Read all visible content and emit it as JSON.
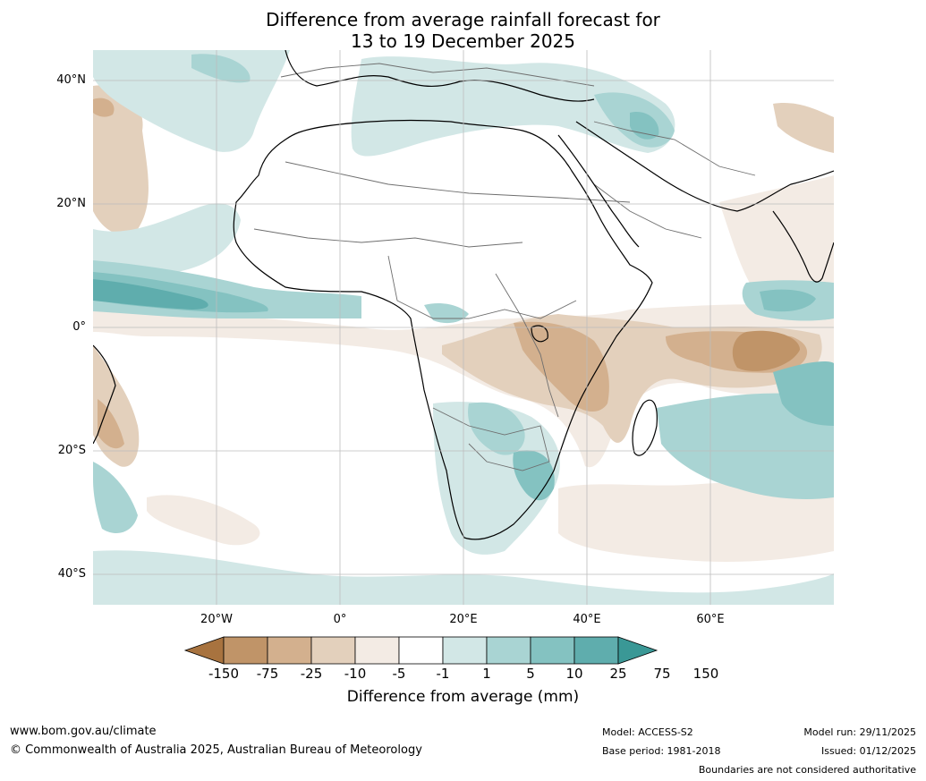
{
  "title": {
    "line1": "Difference from average rainfall forecast for",
    "line2": "13 to 19 December 2025"
  },
  "map": {
    "lat_labels": [
      "40°N",
      "20°N",
      "0°",
      "20°S",
      "40°S"
    ],
    "lon_labels": [
      "20°W",
      "0°",
      "20°E",
      "40°E",
      "60°E"
    ]
  },
  "colorbar": {
    "labels": [
      "-150",
      "-75",
      "-25",
      "-10",
      "-5",
      "-1",
      "1",
      "5",
      "10",
      "25",
      "75",
      "150"
    ],
    "colors": [
      "#a8733f",
      "#c09468",
      "#d3b08e",
      "#e3d0bc",
      "#f3ebe4",
      "#ffffff",
      "#d2e7e6",
      "#a9d4d3",
      "#84c2c1",
      "#5fadad",
      "#3a9896"
    ],
    "title": "Difference from average (mm)"
  },
  "footer": {
    "website": "www.bom.gov.au/climate",
    "copyright": "© Commonwealth of Australia 2025, Australian Bureau of Meteorology",
    "model": "Model: ACCESS-S2",
    "base_period": "Base period: 1981-2018",
    "model_run": "Model run: 29/11/2025",
    "issued": "Issued: 01/12/2025",
    "boundaries": "Boundaries are not considered authoritative"
  }
}
